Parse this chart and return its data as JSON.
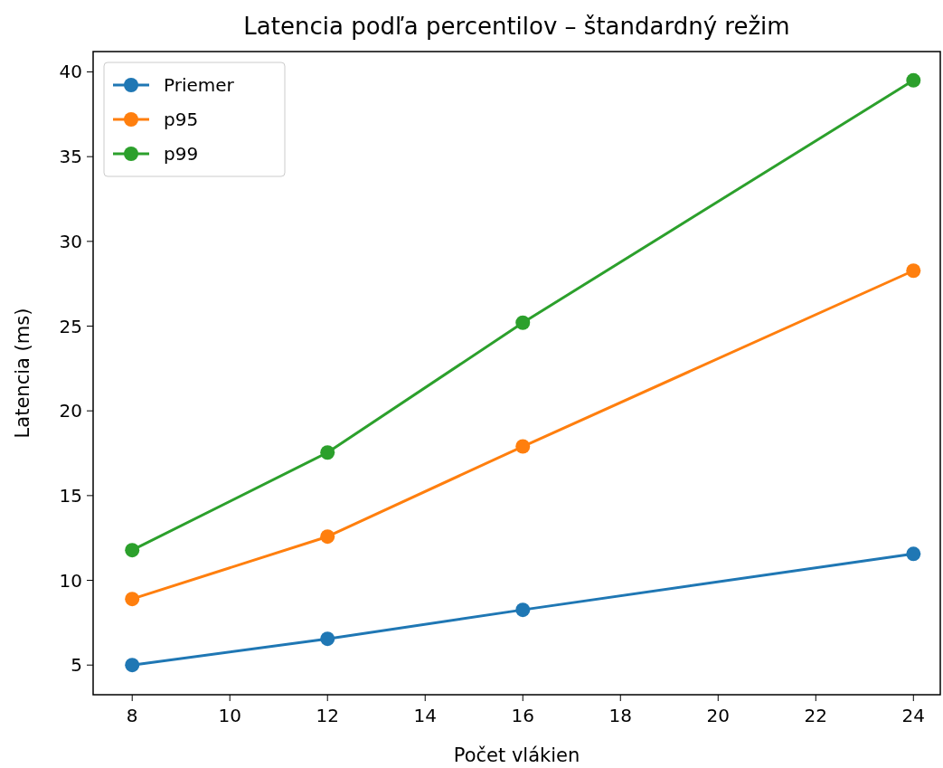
{
  "chart_data": {
    "type": "line",
    "title": "Latencia podľa percentilov – štandardný režim",
    "xlabel": "Počet vlákien",
    "ylabel": "Latencia (ms)",
    "x": [
      8,
      12,
      16,
      24
    ],
    "series": [
      {
        "name": "Priemer",
        "color": "#1f77b4",
        "values": [
          5.0,
          6.55,
          8.26,
          11.56
        ]
      },
      {
        "name": "p95",
        "color": "#ff7f0e",
        "values": [
          8.9,
          12.58,
          17.9,
          28.27
        ]
      },
      {
        "name": "p99",
        "color": "#2ca02c",
        "values": [
          11.78,
          17.54,
          25.2,
          39.5
        ]
      }
    ],
    "xlim": [
      7.2,
      24.55
    ],
    "xticks": [
      8,
      10,
      12,
      14,
      16,
      18,
      20,
      22,
      24
    ],
    "ylim": [
      3.25,
      41.2
    ],
    "yticks": [
      5,
      10,
      15,
      20,
      25,
      30,
      35,
      40
    ],
    "grid": false,
    "legend": "top left",
    "marker": "circle",
    "line_style": "solid"
  }
}
